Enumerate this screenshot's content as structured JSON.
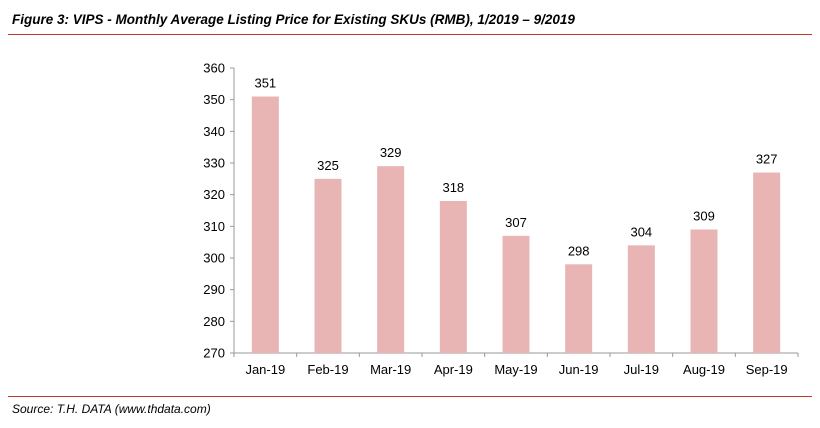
{
  "figure_title": "Figure 3: VIPS - Monthly Average Listing Price for Existing SKUs (RMB), 1/2019 – 9/2019",
  "source": "Source: T.H. DATA (www.thdata.com)",
  "colors": {
    "bar": "#e8b4b4",
    "rule": "#c0392b",
    "axis": "#999999"
  },
  "chart_data": {
    "type": "bar",
    "title": "VIPS - Monthly Average Listing Price for Existing SKUs (RMB), 1/2019 – 9/2019",
    "categories": [
      "Jan-19",
      "Feb-19",
      "Mar-19",
      "Apr-19",
      "May-19",
      "Jun-19",
      "Jul-19",
      "Aug-19",
      "Sep-19"
    ],
    "values": [
      351,
      325,
      329,
      318,
      307,
      298,
      304,
      309,
      327
    ],
    "ylim": [
      270,
      360
    ],
    "yticks": [
      270,
      280,
      290,
      300,
      310,
      320,
      330,
      340,
      350,
      360
    ],
    "xlabel": "",
    "ylabel": "",
    "grid": false,
    "data_labels": true
  }
}
